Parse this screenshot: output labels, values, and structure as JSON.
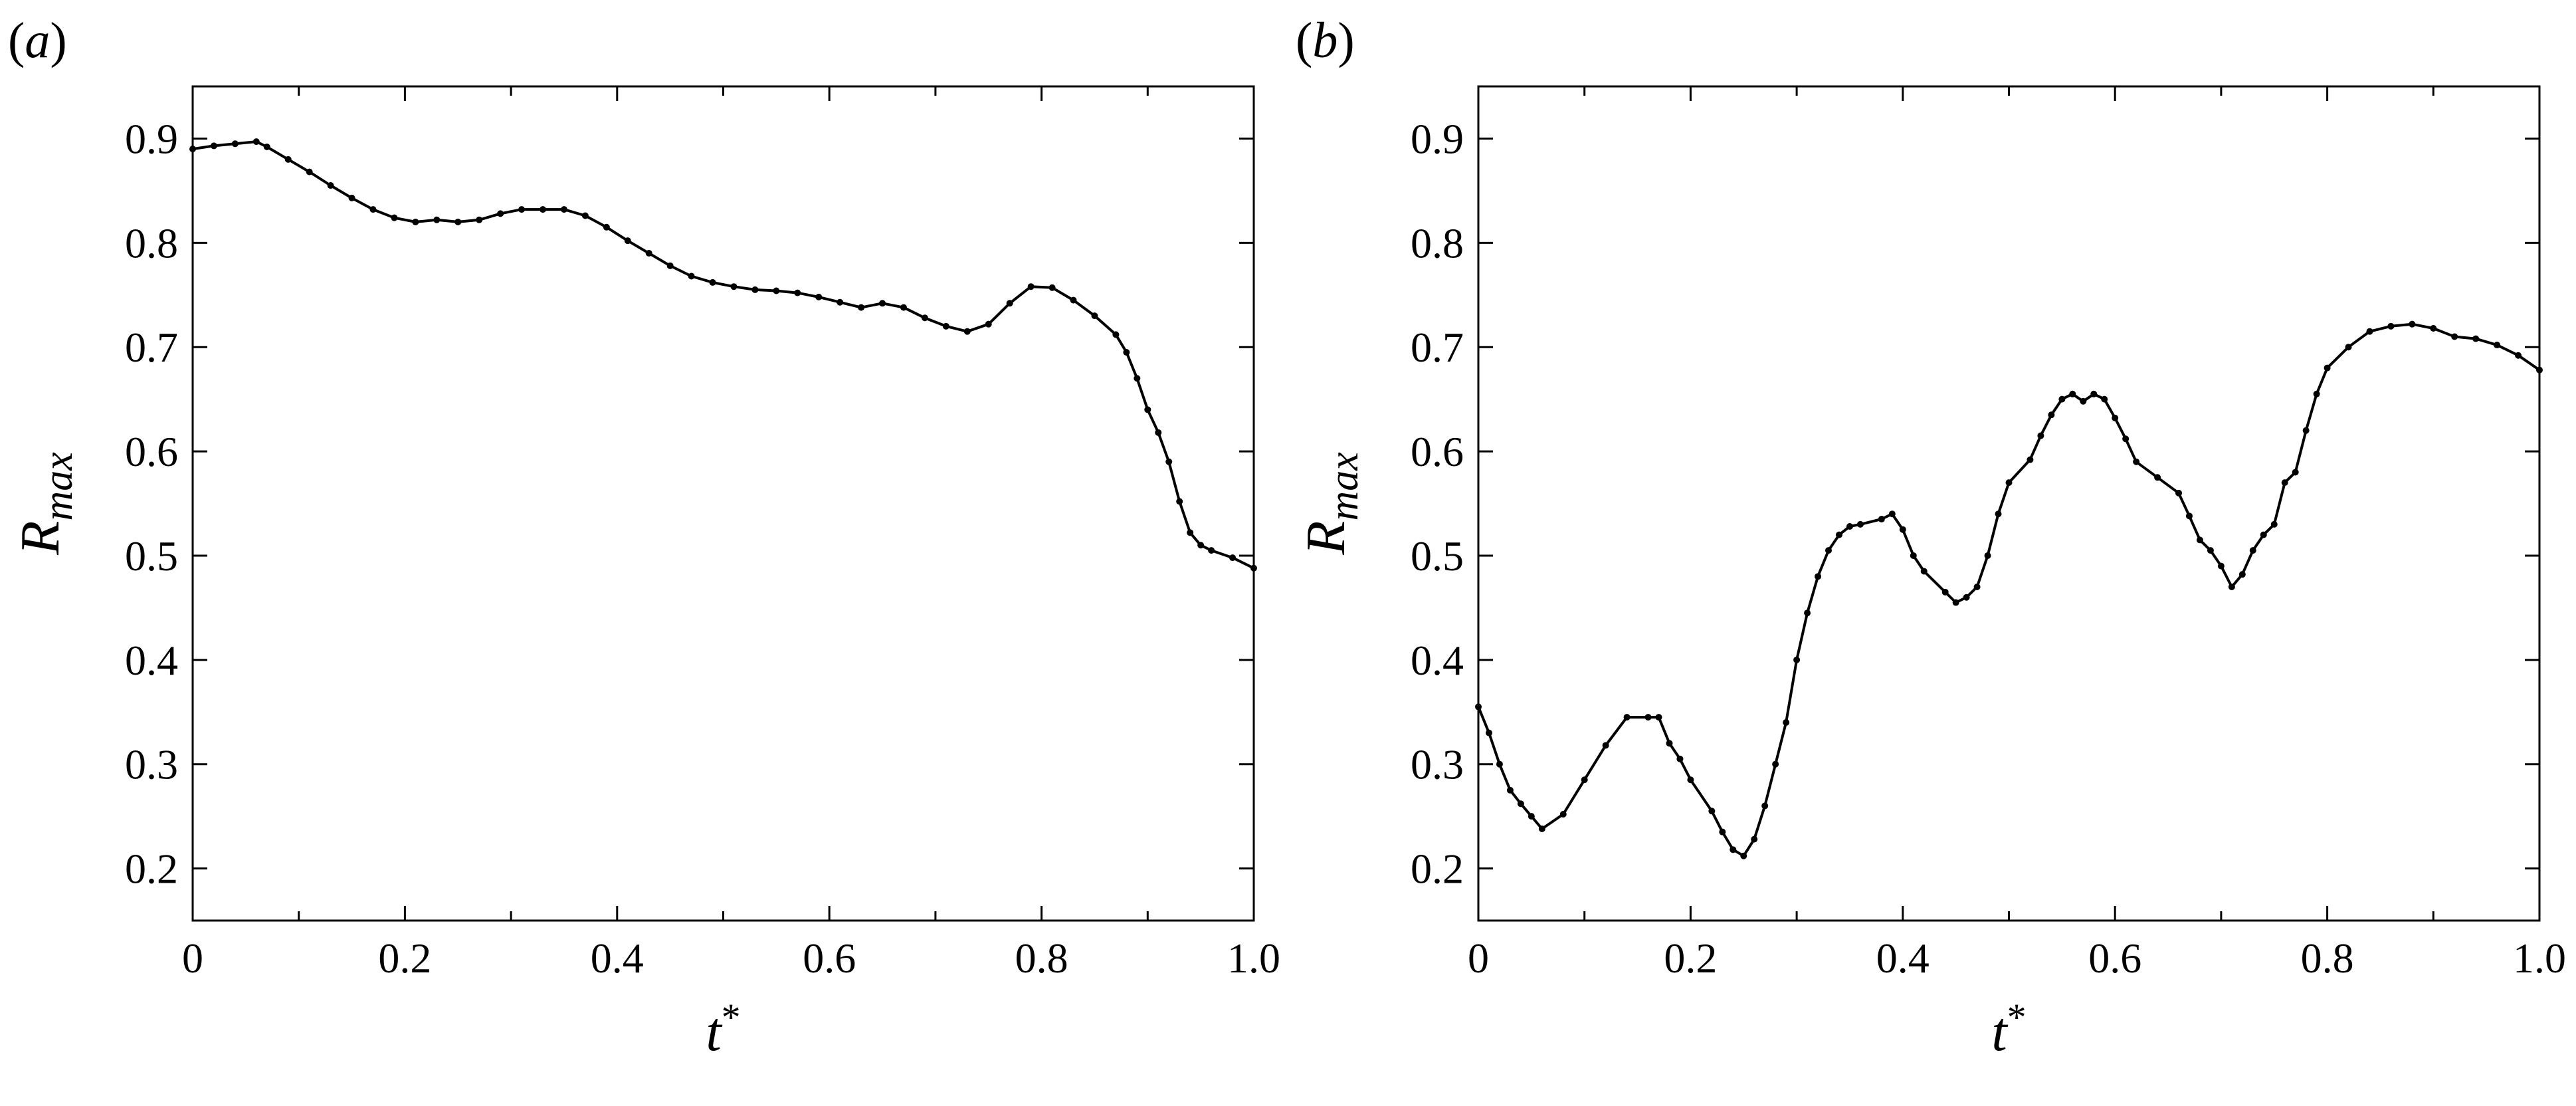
{
  "chart_data": [
    {
      "type": "line",
      "panel_label": "(a)",
      "xlabel": "t*",
      "ylabel": "Rmax",
      "xlim": [
        0,
        1
      ],
      "ylim": [
        0.15,
        0.95
      ],
      "xticks": [
        0,
        0.2,
        0.4,
        0.6,
        0.8,
        1.0
      ],
      "xtick_labels": [
        "0",
        "0.2",
        "0.4",
        "0.6",
        "0.8",
        "1.0"
      ],
      "yticks": [
        0.2,
        0.3,
        0.4,
        0.5,
        0.6,
        0.7,
        0.8,
        0.9
      ],
      "ytick_labels": [
        "0.2",
        "0.3",
        "0.4",
        "0.5",
        "0.6",
        "0.7",
        "0.8",
        "0.9"
      ],
      "grid": false,
      "series": [
        {
          "color": "#000000",
          "marker": "dot",
          "x": [
            0,
            0.02,
            0.04,
            0.06,
            0.07,
            0.09,
            0.11,
            0.13,
            0.15,
            0.17,
            0.19,
            0.21,
            0.23,
            0.25,
            0.27,
            0.29,
            0.31,
            0.33,
            0.35,
            0.37,
            0.39,
            0.41,
            0.43,
            0.45,
            0.47,
            0.49,
            0.51,
            0.53,
            0.55,
            0.57,
            0.59,
            0.61,
            0.63,
            0.65,
            0.67,
            0.69,
            0.71,
            0.73,
            0.75,
            0.77,
            0.79,
            0.81,
            0.83,
            0.85,
            0.87,
            0.88,
            0.89,
            0.9,
            0.91,
            0.92,
            0.93,
            0.94,
            0.95,
            0.96,
            0.98,
            1.0
          ],
          "y": [
            0.89,
            0.893,
            0.895,
            0.897,
            0.892,
            0.88,
            0.868,
            0.855,
            0.843,
            0.832,
            0.824,
            0.82,
            0.822,
            0.82,
            0.822,
            0.828,
            0.832,
            0.832,
            0.832,
            0.826,
            0.815,
            0.802,
            0.79,
            0.778,
            0.768,
            0.762,
            0.758,
            0.755,
            0.754,
            0.752,
            0.748,
            0.743,
            0.738,
            0.742,
            0.738,
            0.728,
            0.72,
            0.715,
            0.722,
            0.742,
            0.758,
            0.757,
            0.745,
            0.73,
            0.712,
            0.695,
            0.67,
            0.64,
            0.618,
            0.59,
            0.552,
            0.522,
            0.51,
            0.505,
            0.498,
            0.488
          ]
        }
      ]
    },
    {
      "type": "line",
      "panel_label": "(b)",
      "xlabel": "t*",
      "ylabel": "Rmax",
      "xlim": [
        0,
        1
      ],
      "ylim": [
        0.15,
        0.95
      ],
      "xticks": [
        0,
        0.2,
        0.4,
        0.6,
        0.8,
        1.0
      ],
      "xtick_labels": [
        "0",
        "0.2",
        "0.4",
        "0.6",
        "0.8",
        "1.0"
      ],
      "yticks": [
        0.2,
        0.3,
        0.4,
        0.5,
        0.6,
        0.7,
        0.8,
        0.9
      ],
      "ytick_labels": [
        "0.2",
        "0.3",
        "0.4",
        "0.5",
        "0.6",
        "0.7",
        "0.8",
        "0.9"
      ],
      "grid": false,
      "series": [
        {
          "color": "#000000",
          "marker": "dot",
          "x": [
            0,
            0.01,
            0.02,
            0.03,
            0.04,
            0.05,
            0.06,
            0.08,
            0.1,
            0.12,
            0.14,
            0.16,
            0.17,
            0.18,
            0.19,
            0.2,
            0.22,
            0.23,
            0.24,
            0.25,
            0.26,
            0.27,
            0.28,
            0.29,
            0.3,
            0.31,
            0.32,
            0.33,
            0.34,
            0.35,
            0.36,
            0.38,
            0.39,
            0.4,
            0.41,
            0.42,
            0.44,
            0.45,
            0.46,
            0.47,
            0.48,
            0.49,
            0.5,
            0.52,
            0.53,
            0.54,
            0.55,
            0.56,
            0.57,
            0.58,
            0.59,
            0.6,
            0.61,
            0.62,
            0.64,
            0.66,
            0.67,
            0.68,
            0.69,
            0.7,
            0.71,
            0.72,
            0.73,
            0.74,
            0.75,
            0.76,
            0.77,
            0.78,
            0.79,
            0.8,
            0.82,
            0.84,
            0.86,
            0.88,
            0.9,
            0.92,
            0.94,
            0.96,
            0.98,
            1.0
          ],
          "y": [
            0.355,
            0.33,
            0.3,
            0.275,
            0.262,
            0.25,
            0.238,
            0.252,
            0.285,
            0.318,
            0.345,
            0.345,
            0.345,
            0.32,
            0.305,
            0.285,
            0.255,
            0.235,
            0.218,
            0.212,
            0.228,
            0.26,
            0.3,
            0.34,
            0.4,
            0.445,
            0.48,
            0.505,
            0.52,
            0.528,
            0.53,
            0.535,
            0.54,
            0.525,
            0.5,
            0.485,
            0.465,
            0.455,
            0.46,
            0.47,
            0.5,
            0.54,
            0.57,
            0.592,
            0.615,
            0.635,
            0.65,
            0.655,
            0.648,
            0.655,
            0.65,
            0.632,
            0.612,
            0.59,
            0.575,
            0.56,
            0.538,
            0.515,
            0.505,
            0.49,
            0.47,
            0.482,
            0.505,
            0.52,
            0.53,
            0.57,
            0.58,
            0.62,
            0.655,
            0.68,
            0.7,
            0.715,
            0.72,
            0.722,
            0.718,
            0.71,
            0.708,
            0.702,
            0.692,
            0.678
          ]
        }
      ]
    }
  ]
}
